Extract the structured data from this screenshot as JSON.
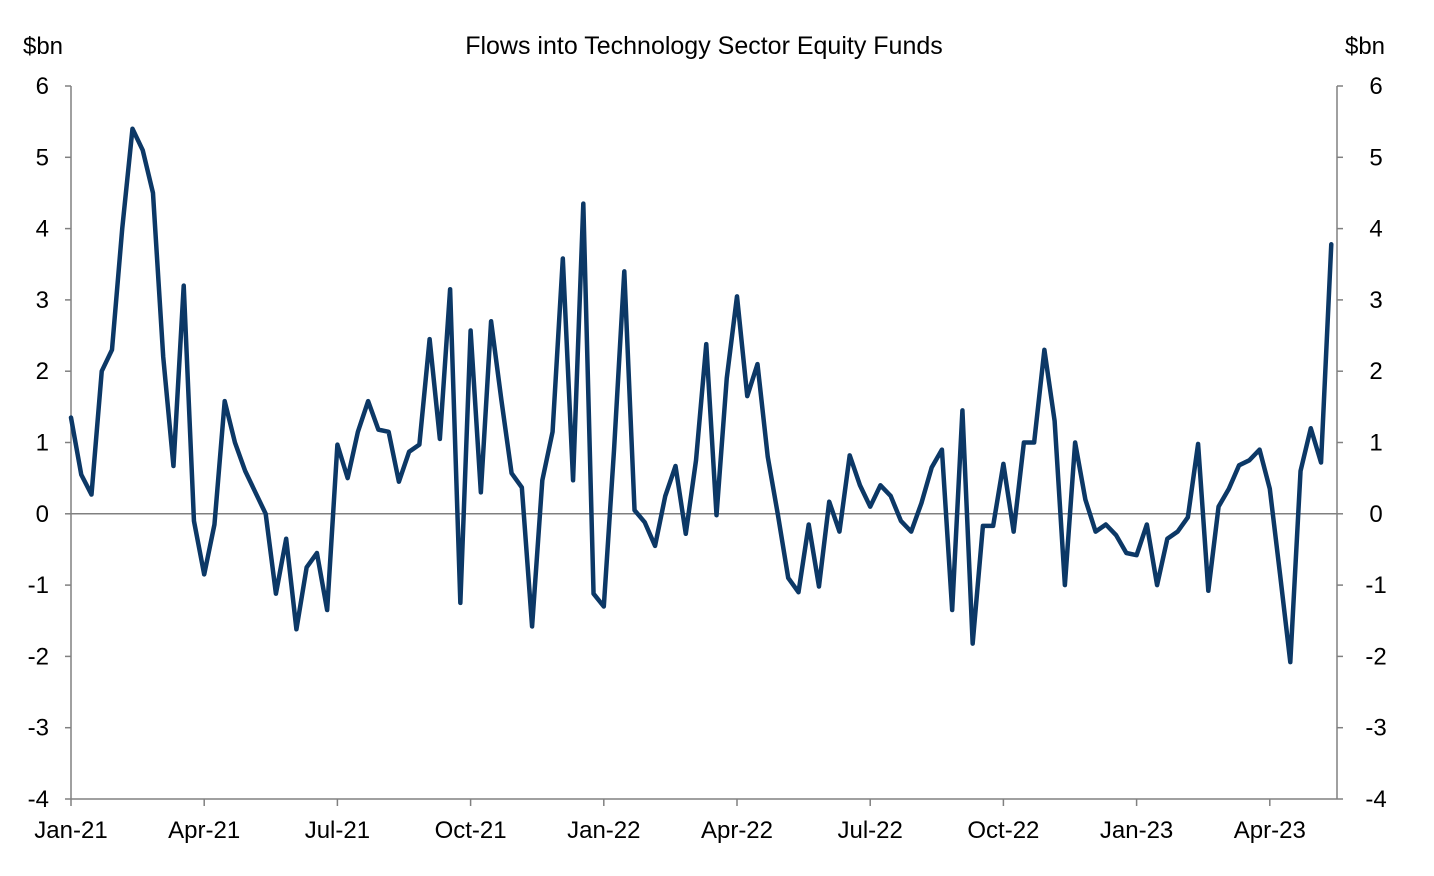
{
  "chart_data": {
    "type": "line",
    "title": "Flows into Technology Sector Equity Funds",
    "ylabel_left": "$bn",
    "ylabel_right": "$bn",
    "xlabel": "",
    "ylim": [
      -4,
      6
    ],
    "yticks": [
      6,
      5,
      4,
      3,
      2,
      1,
      0,
      -1,
      -2,
      -3,
      -4
    ],
    "x_tick_labels": [
      "Jan-21",
      "Apr-21",
      "Jul-21",
      "Oct-21",
      "Jan-22",
      "Apr-22",
      "Jul-22",
      "Oct-22",
      "Jan-23",
      "Apr-23"
    ],
    "x_start": "2021-01-01",
    "x_tick_spacing_weeks": 13.0,
    "frequency": "weekly",
    "line_color": "#0c3866",
    "grid": false,
    "zero_line": true,
    "series": [
      {
        "values": [
          1.35,
          0.55,
          0.27,
          2.0,
          2.3,
          4.0,
          5.4,
          5.1,
          4.5,
          2.2,
          0.67,
          3.2,
          -0.1,
          -0.85,
          -0.15,
          1.58,
          1.0,
          0.6,
          0.3,
          0.0,
          -1.12,
          -0.35,
          -1.62,
          -0.75,
          -0.55,
          -1.35,
          0.97,
          0.5,
          1.15,
          1.58,
          1.18,
          1.15,
          0.45,
          0.87,
          0.97,
          2.45,
          1.05,
          3.15,
          -1.25,
          2.57,
          0.3,
          2.7,
          1.6,
          0.57,
          0.37,
          -1.58,
          0.47,
          1.15,
          3.58,
          0.47,
          4.35,
          -1.12,
          -1.3,
          0.9,
          3.4,
          0.05,
          -0.12,
          -0.45,
          0.25,
          0.67,
          -0.28,
          0.75,
          2.38,
          -0.02,
          1.9,
          3.05,
          1.65,
          2.1,
          0.8,
          -0.02,
          -0.9,
          -1.1,
          -0.15,
          -1.02,
          0.17,
          -0.25,
          0.82,
          0.4,
          0.1,
          0.4,
          0.25,
          -0.1,
          -0.25,
          0.15,
          0.65,
          0.9,
          -1.35,
          1.45,
          -1.82,
          -0.17,
          -0.17,
          0.7,
          -0.25,
          1.0,
          1.0,
          2.3,
          1.3,
          -1.0,
          1.0,
          0.2,
          -0.25,
          -0.15,
          -0.3,
          -0.55,
          -0.58,
          -0.15,
          -1.0,
          -0.35,
          -0.25,
          -0.05,
          0.98,
          -1.08,
          0.1,
          0.35,
          0.68,
          0.75,
          0.9,
          0.35,
          -0.85,
          -2.08,
          0.6,
          1.2,
          0.72,
          3.78
        ]
      }
    ]
  }
}
